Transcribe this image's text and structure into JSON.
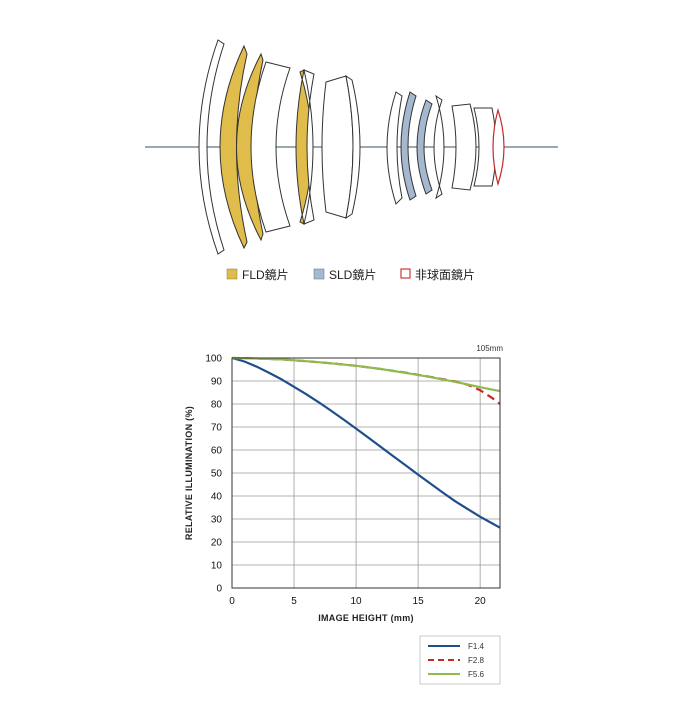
{
  "colors": {
    "fld": "#E0BC4A",
    "sld": "#A4B8CF",
    "aspherical": "#C62828",
    "axis_line": "#5F7380",
    "outline": "#333333"
  },
  "lens_legend": {
    "fld": "FLD鏡片",
    "sld": "SLD鏡片",
    "aspherical": "非球面鏡片"
  },
  "chart_data": {
    "type": "line",
    "title": "105mm",
    "xlabel": "IMAGE HEIGHT (mm)",
    "ylabel": "RELATIVE ILLUMINATION  (%)",
    "xlim": [
      0,
      21.6
    ],
    "ylim": [
      0,
      100
    ],
    "xticks": [
      0,
      5,
      10,
      15,
      20
    ],
    "yticks": [
      0,
      10,
      20,
      30,
      40,
      50,
      60,
      70,
      80,
      90,
      100
    ],
    "grid": true,
    "legend_position": "bottom-right",
    "series": [
      {
        "name": "F1.4",
        "color": "#1F4E8C",
        "dash": "solid",
        "x": [
          0,
          1,
          2,
          3,
          4,
          5,
          6,
          7,
          8,
          9,
          10,
          11,
          12,
          13,
          14,
          15,
          16,
          17,
          18,
          19,
          20,
          21,
          21.6
        ],
        "y": [
          100,
          98.5,
          96.2,
          93.5,
          90.7,
          87.5,
          84.2,
          80.7,
          77.0,
          73.2,
          69.3,
          65.3,
          61.3,
          57.3,
          53.3,
          49.3,
          45.4,
          41.5,
          37.7,
          34.3,
          31.0,
          28.0,
          26.2
        ]
      },
      {
        "name": "F2.8",
        "color": "#C62828",
        "dash": "dashed",
        "x": [
          0,
          2,
          4,
          6,
          8,
          10,
          12,
          14,
          16,
          18,
          19,
          20,
          21,
          21.6
        ],
        "y": [
          100,
          99.8,
          99.4,
          98.6,
          97.7,
          96.6,
          95.2,
          93.6,
          91.8,
          89.8,
          88.4,
          86.0,
          82.5,
          80.0
        ]
      },
      {
        "name": "F5.6",
        "color": "#8DBB4C",
        "dash": "solid",
        "x": [
          0,
          2,
          4,
          6,
          8,
          10,
          12,
          14,
          16,
          18,
          19,
          20,
          21,
          21.6
        ],
        "y": [
          100,
          99.8,
          99.4,
          98.6,
          97.7,
          96.6,
          95.2,
          93.5,
          91.7,
          89.6,
          88.5,
          87.3,
          86.2,
          85.6
        ]
      }
    ]
  }
}
